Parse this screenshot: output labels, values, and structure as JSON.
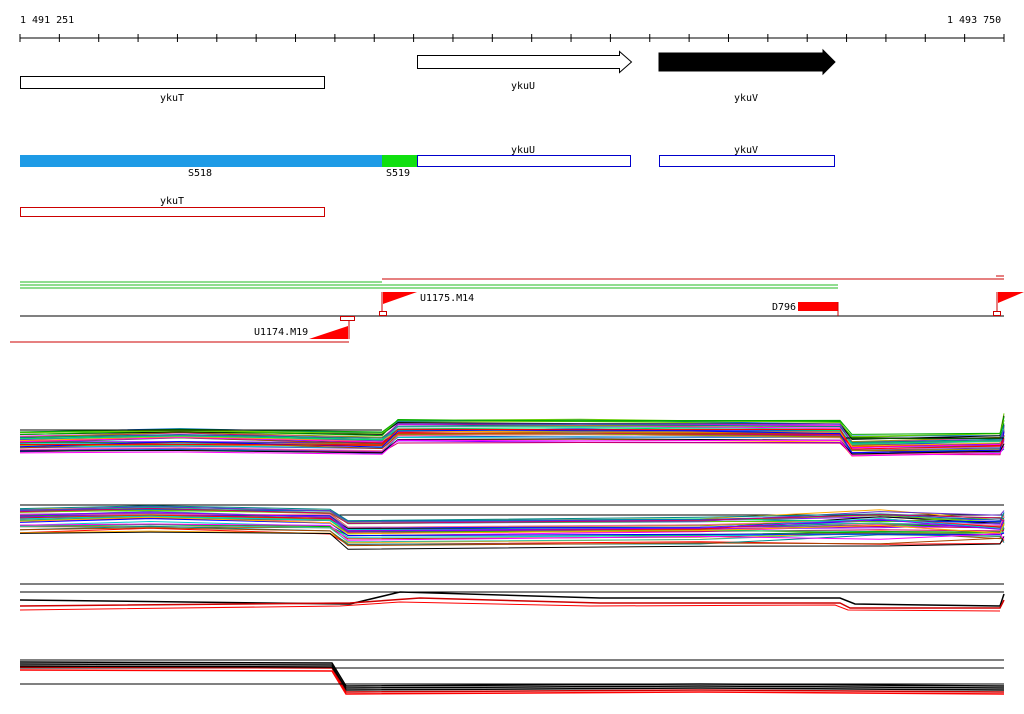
{
  "coords": {
    "start": "1 491 251",
    "end": "1 493 750"
  },
  "genes": {
    "ykuT": "ykuT",
    "ykuU": "ykuU",
    "ykuV": "ykuV"
  },
  "segments": {
    "s518": "S518",
    "s519": "S519"
  },
  "transcripts": {
    "ykuU": "ykuU",
    "ykuV": "ykuV",
    "ykuT": "ykuT"
  },
  "probes": {
    "u1175": "U1175.M14",
    "u1174": "U1174.M19",
    "d796": "D796"
  },
  "colors": {
    "segment_blue": "#1e9be6",
    "segment_green": "#10e010",
    "transcript_blue": "#0000cc",
    "transcript_red": "#cc0000",
    "flag_red": "#ff0000"
  }
}
